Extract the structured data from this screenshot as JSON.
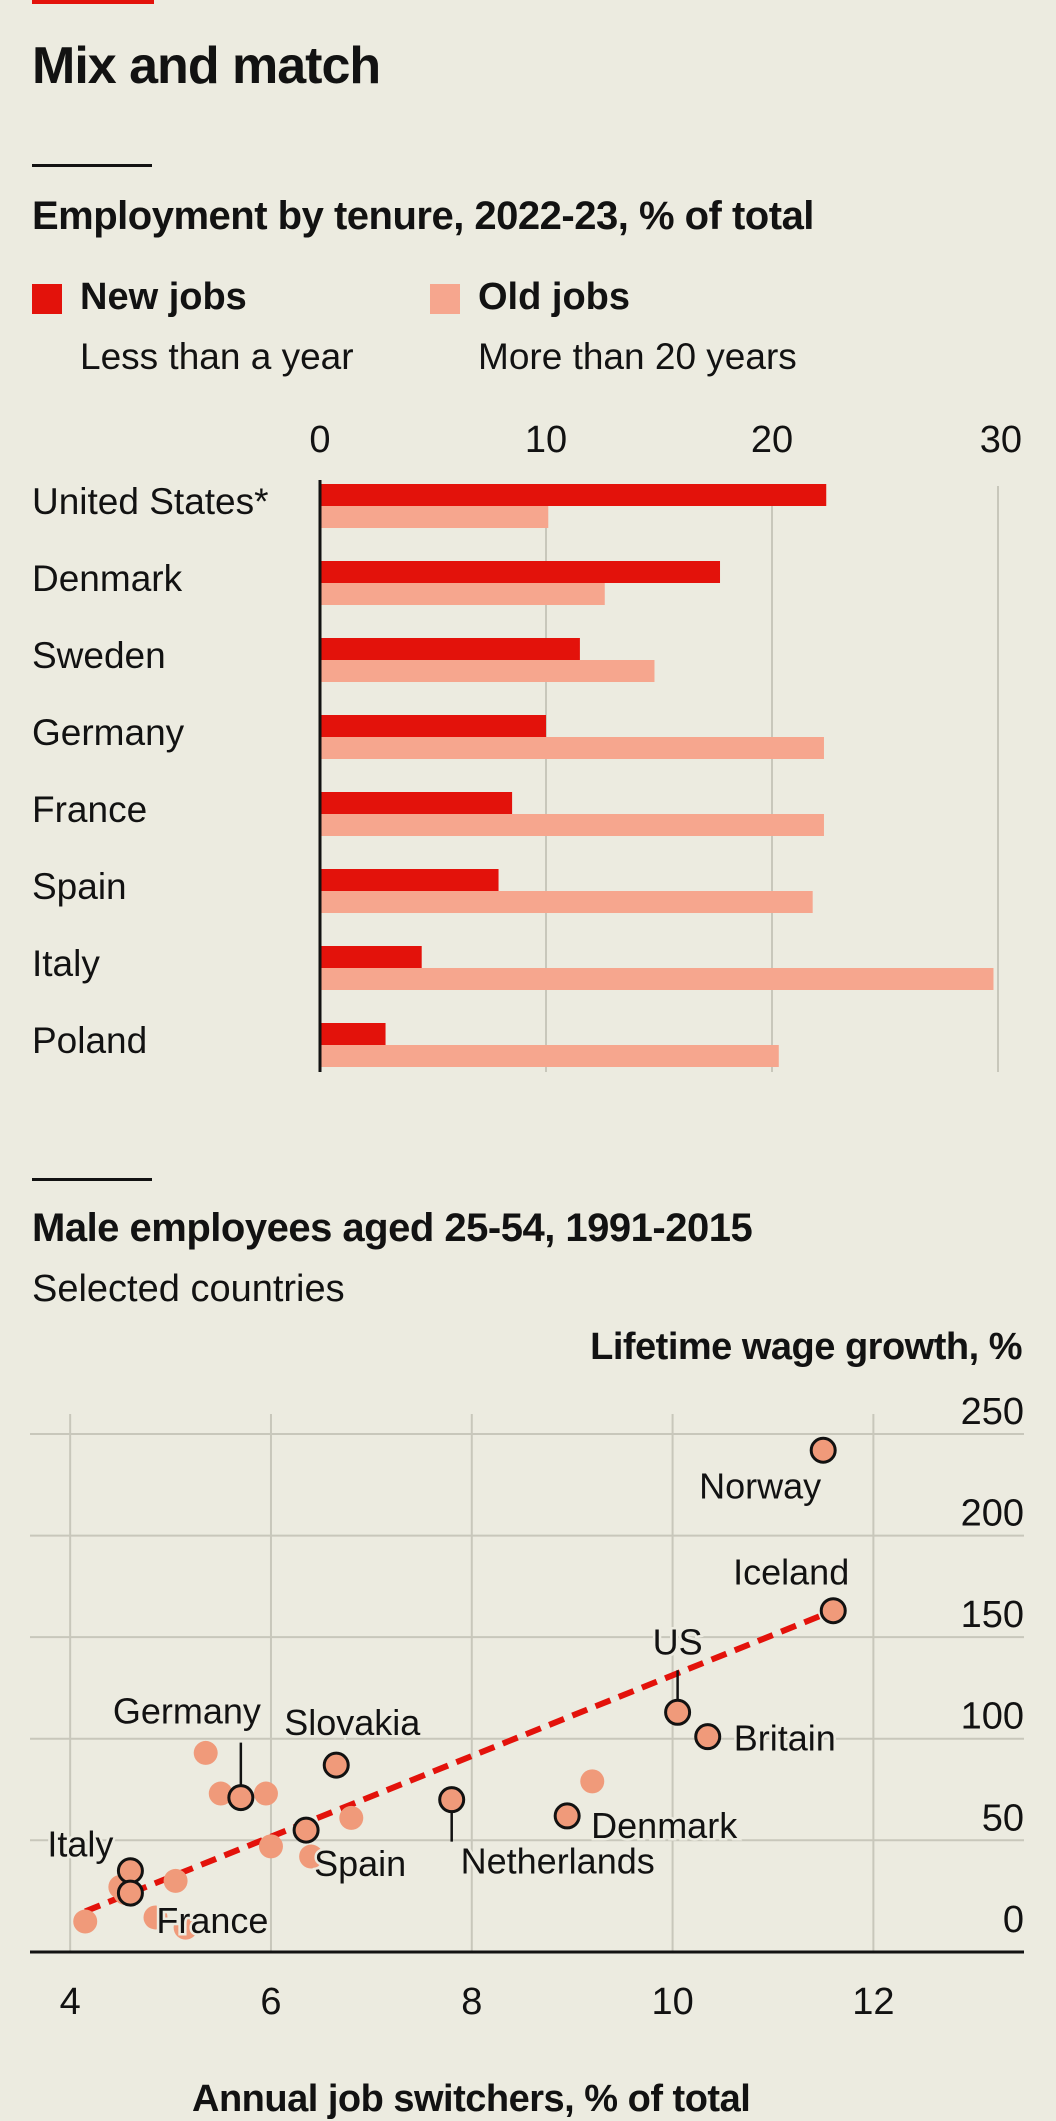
{
  "title": "Mix and match",
  "colors": {
    "new": "#e3120b",
    "old": "#f6a68e",
    "dot": "#f09a7a",
    "trend": "#e3120b"
  },
  "chart_data": [
    {
      "type": "bar",
      "title": "Employment by tenure, 2022-23, % of total",
      "legend": [
        {
          "name": "New jobs",
          "sub": "Less than a year"
        },
        {
          "name": "Old jobs",
          "sub": "More than 20 years"
        }
      ],
      "categories": [
        "United States*",
        "Denmark",
        "Sweden",
        "Germany",
        "France",
        "Spain",
        "Italy",
        "Poland"
      ],
      "series": [
        {
          "name": "New jobs",
          "values": [
            22.4,
            17.7,
            11.5,
            10.0,
            8.5,
            7.9,
            4.5,
            2.9
          ]
        },
        {
          "name": "Old jobs",
          "values": [
            10.1,
            12.6,
            14.8,
            22.3,
            22.3,
            21.8,
            29.8,
            20.3
          ]
        }
      ],
      "xticks": [
        0,
        10,
        20,
        30
      ],
      "xlim": [
        0,
        30
      ]
    },
    {
      "type": "scatter",
      "title": "Male employees aged 25-54, 1991-2015",
      "subtitle": "Selected countries",
      "xlabel": "Annual job switchers, % of total",
      "ylabel": "Lifetime wage growth, %",
      "xlim": [
        3.6,
        13.5
      ],
      "ylim": [
        -5,
        250
      ],
      "xticks": [
        4,
        6,
        8,
        10,
        12
      ],
      "yticks": [
        0,
        50,
        100,
        150,
        200,
        250
      ],
      "labelled_points": [
        {
          "name": "Norway",
          "x": 11.5,
          "y": 242
        },
        {
          "name": "Iceland",
          "x": 11.6,
          "y": 163
        },
        {
          "name": "US",
          "x": 10.05,
          "y": 113
        },
        {
          "name": "Britain",
          "x": 10.35,
          "y": 101
        },
        {
          "name": "Germany",
          "x": 5.7,
          "y": 71
        },
        {
          "name": "Slovakia",
          "x": 6.65,
          "y": 87
        },
        {
          "name": "Netherlands",
          "x": 7.8,
          "y": 70
        },
        {
          "name": "Denmark",
          "x": 8.95,
          "y": 62
        },
        {
          "name": "Spain",
          "x": 6.35,
          "y": 55
        },
        {
          "name": "Italy",
          "x": 4.6,
          "y": 35
        },
        {
          "name": "France",
          "x": 4.6,
          "y": 24
        }
      ],
      "other_points": [
        {
          "x": 4.15,
          "y": 10
        },
        {
          "x": 4.5,
          "y": 27
        },
        {
          "x": 4.55,
          "y": 24
        },
        {
          "x": 4.85,
          "y": 12
        },
        {
          "x": 5.05,
          "y": 30
        },
        {
          "x": 5.15,
          "y": 7
        },
        {
          "x": 5.35,
          "y": 93
        },
        {
          "x": 5.5,
          "y": 73
        },
        {
          "x": 5.95,
          "y": 73
        },
        {
          "x": 6.0,
          "y": 47
        },
        {
          "x": 6.4,
          "y": 42
        },
        {
          "x": 6.8,
          "y": 61
        },
        {
          "x": 9.2,
          "y": 79
        }
      ],
      "trend": {
        "x1": 4.15,
        "y1": 15,
        "x2": 11.6,
        "y2": 163
      }
    }
  ]
}
